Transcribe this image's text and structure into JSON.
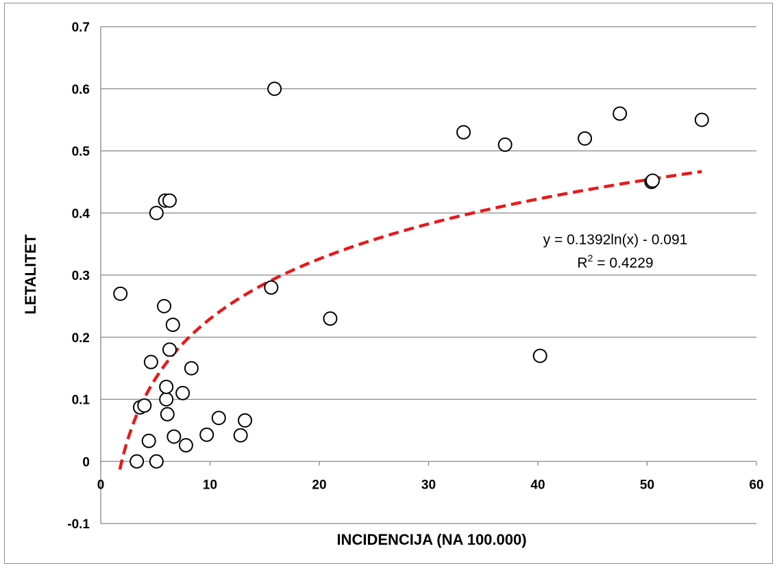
{
  "chart_data": {
    "type": "scatter",
    "xlabel": "INCIDENCIJA (NA 100.000)",
    "ylabel": "LETALITET",
    "xlim": [
      0,
      60
    ],
    "ylim": [
      -0.1,
      0.7
    ],
    "x_ticks": [
      "0",
      "10",
      "20",
      "30",
      "40",
      "50",
      "60"
    ],
    "y_ticks": [
      "-0.1",
      "0",
      "0.1",
      "0.2",
      "0.3",
      "0.4",
      "0.5",
      "0.6",
      "0.7"
    ],
    "grid": "horizontal",
    "series": [
      {
        "marker": "hollow-circle",
        "points": [
          [
            1.8,
            0.27
          ],
          [
            3.3,
            0.0
          ],
          [
            3.6,
            0.087
          ],
          [
            4.0,
            0.09
          ],
          [
            4.4,
            0.033
          ],
          [
            4.6,
            0.16
          ],
          [
            5.1,
            0.0
          ],
          [
            5.1,
            0.4
          ],
          [
            5.8,
            0.25
          ],
          [
            5.9,
            0.42
          ],
          [
            6.0,
            0.1
          ],
          [
            6.0,
            0.12
          ],
          [
            6.1,
            0.076
          ],
          [
            6.3,
            0.42
          ],
          [
            6.3,
            0.18
          ],
          [
            6.6,
            0.22
          ],
          [
            6.7,
            0.04
          ],
          [
            7.5,
            0.11
          ],
          [
            7.8,
            0.026
          ],
          [
            8.3,
            0.15
          ],
          [
            9.7,
            0.043
          ],
          [
            10.8,
            0.07
          ],
          [
            12.8,
            0.042
          ],
          [
            13.2,
            0.066
          ],
          [
            15.6,
            0.28
          ],
          [
            15.9,
            0.6
          ],
          [
            21.0,
            0.23
          ],
          [
            33.2,
            0.53
          ],
          [
            37.0,
            0.51
          ],
          [
            40.2,
            0.17
          ],
          [
            44.3,
            0.52
          ],
          [
            47.5,
            0.56
          ],
          [
            50.4,
            0.45
          ],
          [
            50.5,
            0.452
          ],
          [
            55.0,
            0.55
          ]
        ]
      }
    ],
    "trendline": {
      "type": "logarithmic",
      "a": 0.1392,
      "b": -0.091,
      "color": "#e8191b",
      "style": "dashed"
    },
    "annotation": {
      "equation": "y = 0.1392ln(x) - 0.091",
      "r2_prefix": "R",
      "r2_sup": "2",
      "r2_suffix": " = 0.4229"
    },
    "colors": {
      "gridline": "#868686",
      "axis": "#868686",
      "marker_stroke": "#000000",
      "marker_fill": "#ffffff"
    }
  }
}
